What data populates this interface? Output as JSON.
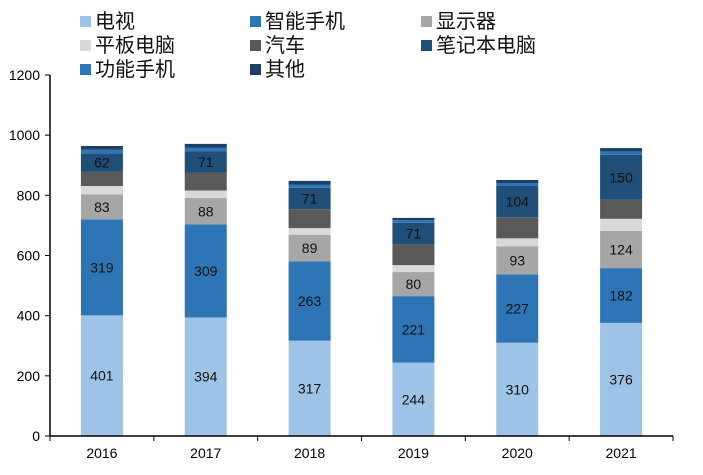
{
  "chart_data": {
    "type": "bar",
    "stacked": true,
    "title": "",
    "xlabel": "",
    "ylabel": "",
    "ylim": [
      0,
      1200
    ],
    "yticks": [
      0,
      200,
      400,
      600,
      800,
      1000,
      1200
    ],
    "grid": false,
    "legend_position": "top",
    "categories": [
      "2016",
      "2017",
      "2018",
      "2019",
      "2020",
      "2021"
    ],
    "series": [
      {
        "name": "电视",
        "color": "#9dc3e6",
        "values": [
          401,
          394,
          317,
          244,
          310,
          376
        ],
        "labeled": true
      },
      {
        "name": "智能手机",
        "color": "#2e75b6",
        "values": [
          319,
          309,
          263,
          221,
          227,
          182
        ],
        "labeled": true
      },
      {
        "name": "显示器",
        "color": "#a6a6a6",
        "values": [
          83,
          88,
          89,
          80,
          93,
          124
        ],
        "labeled": true
      },
      {
        "name": "平板电脑",
        "color": "#d9d9d9",
        "values": [
          28,
          25,
          22,
          23,
          27,
          40
        ],
        "labeled": false
      },
      {
        "name": "汽车",
        "color": "#595959",
        "values": [
          47,
          60,
          63,
          70,
          70,
          63
        ],
        "labeled": false
      },
      {
        "name": "笔记本电脑",
        "color": "#1f4e79",
        "values": [
          62,
          71,
          71,
          71,
          104,
          150
        ],
        "labeled": true
      },
      {
        "name": "功能手机",
        "color": "#2e75b6",
        "values": [
          12,
          12,
          11,
          8,
          10,
          11
        ],
        "labeled": false
      },
      {
        "name": "其他",
        "color": "#1f3f66",
        "values": [
          12,
          12,
          12,
          8,
          10,
          11
        ],
        "labeled": false
      }
    ]
  },
  "legend": {
    "items": [
      {
        "label": "电视",
        "color": "#9dc3e6"
      },
      {
        "label": "智能手机",
        "color": "#2e75b6"
      },
      {
        "label": "显示器",
        "color": "#a6a6a6"
      },
      {
        "label": "平板电脑",
        "color": "#d9d9d9"
      },
      {
        "label": "汽车",
        "color": "#595959"
      },
      {
        "label": "笔记本电脑",
        "color": "#1f4e79"
      },
      {
        "label": "功能手机",
        "color": "#2e75b6"
      },
      {
        "label": "其他",
        "color": "#1f3f66"
      }
    ]
  }
}
